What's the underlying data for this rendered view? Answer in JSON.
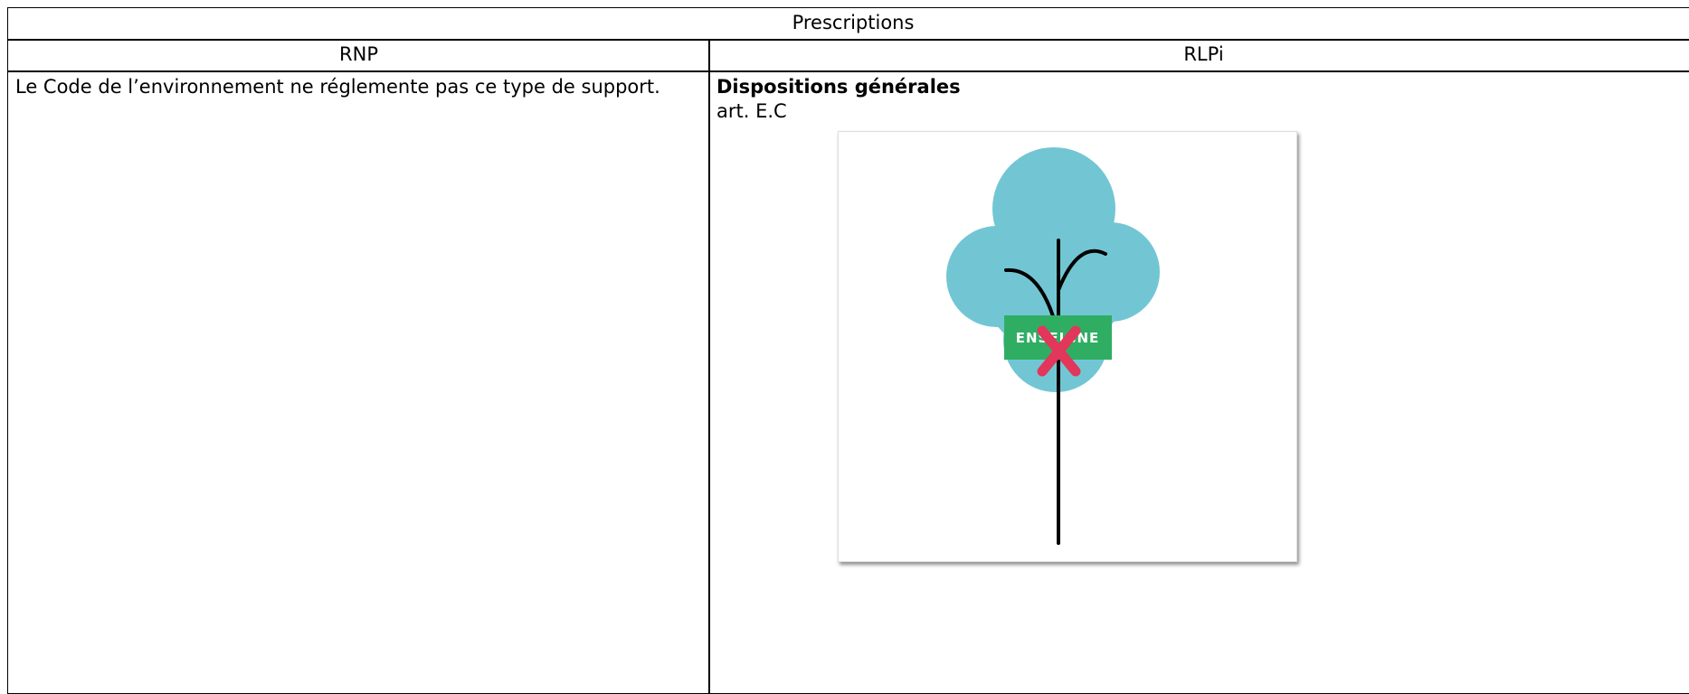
{
  "table": {
    "title": "Prescriptions",
    "columns": [
      "RNP",
      "RLPi"
    ],
    "rows": [
      [
        "Le Code de l’environnement ne réglemente pas ce type de support.",
        {
          "heading": "Dispositions générales",
          "reference": "art. E.C",
          "illustration_label": "ENSEIGNE"
        }
      ]
    ]
  }
}
